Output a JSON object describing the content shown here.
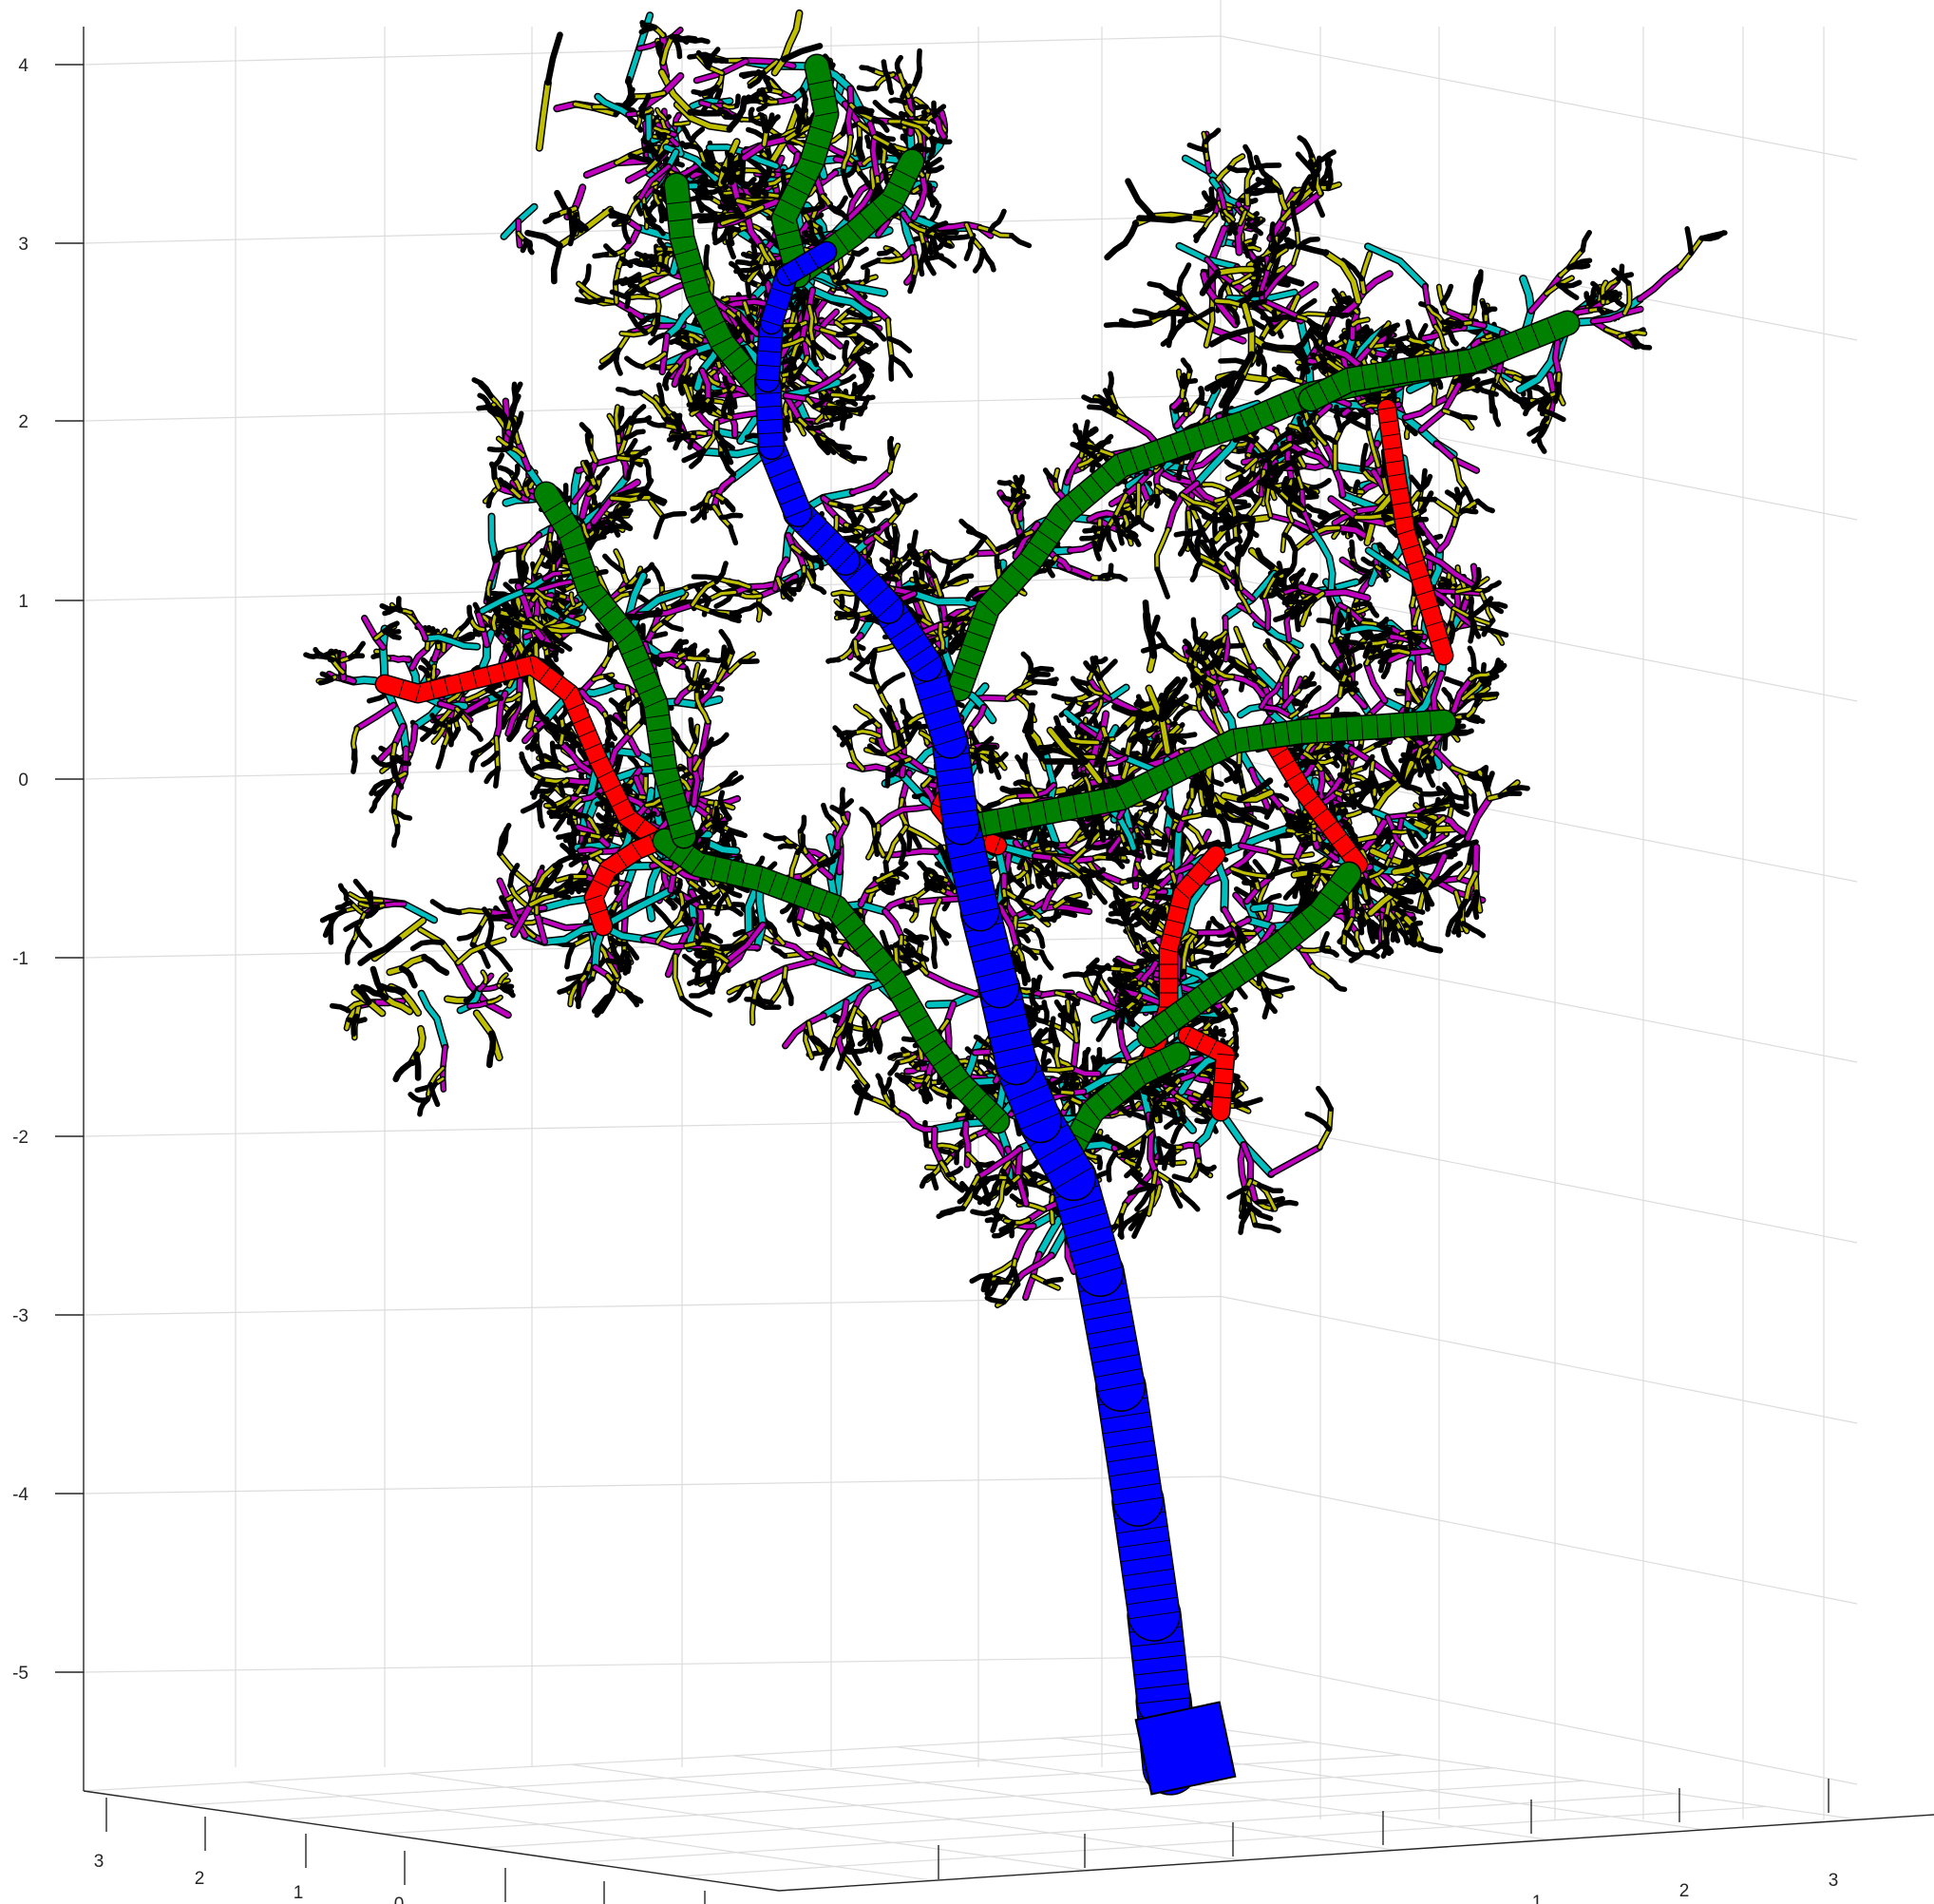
{
  "chart_data": {
    "type": "3d-line",
    "title": "",
    "xlabel": "",
    "ylabel": "",
    "zlabel": "",
    "grid": true,
    "legend": "none",
    "z_ticks": [
      "4",
      "3",
      "2",
      "1",
      "0",
      "-1",
      "-2",
      "-3",
      "-4",
      "-5"
    ],
    "left_depth_ticks": [
      "3",
      "2",
      "1",
      "0"
    ],
    "right_depth_ticks": [
      "1",
      "2",
      "3"
    ],
    "series": [
      {
        "color": "#0000ff",
        "role": "trunk"
      },
      {
        "color": "#008000",
        "role": "branch-order-1"
      },
      {
        "color": "#ff0000",
        "role": "branch-order-2"
      },
      {
        "color": "#00bfbf",
        "role": "branch-order-3"
      },
      {
        "color": "#bf00bf",
        "role": "branch-order-4"
      },
      {
        "color": "#bfbf00",
        "role": "branch-order-5"
      },
      {
        "color": "#000000",
        "role": "branch-order-6"
      }
    ]
  }
}
